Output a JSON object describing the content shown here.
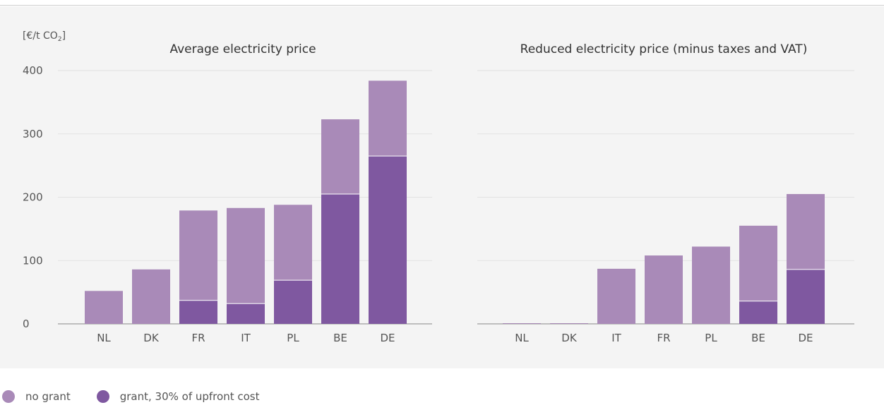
{
  "unit": "[€/t CO",
  "unit_sub": "2",
  "unit_end": "]",
  "legend": [
    {
      "label": "no grant",
      "color": "#a98ab8"
    },
    {
      "label": "grant, 30% of upfront cost",
      "color": "#7f58a0"
    }
  ],
  "chart_data": [
    {
      "type": "bar",
      "title": "Average electricity price",
      "categories": [
        "NL",
        "DK",
        "FR",
        "IT",
        "PL",
        "BE",
        "DE"
      ],
      "series": [
        {
          "name": "no grant",
          "color": "#a98ab8",
          "values": [
            52,
            86,
            179,
            183,
            188,
            323,
            384
          ]
        },
        {
          "name": "grant, 30% of upfront cost",
          "color": "#7f58a0",
          "values": [
            0,
            0,
            37,
            32,
            69,
            205,
            265
          ]
        }
      ],
      "ylim": [
        0,
        400
      ],
      "yticks": [
        0,
        100,
        200,
        300,
        400
      ],
      "grid": true
    },
    {
      "type": "bar",
      "title": "Reduced electricity price (minus taxes and VAT)",
      "categories": [
        "NL",
        "DK",
        "IT",
        "FR",
        "PL",
        "BE",
        "DE"
      ],
      "series": [
        {
          "name": "no grant",
          "color": "#a98ab8",
          "values": [
            0,
            0,
            87,
            108,
            122,
            155,
            205
          ]
        },
        {
          "name": "grant, 30% of upfront cost",
          "color": "#7f58a0",
          "values": [
            0,
            0,
            0,
            0,
            0,
            36,
            86
          ]
        }
      ],
      "ylim": [
        0,
        400
      ],
      "yticks": [
        0,
        100,
        200,
        300,
        400
      ],
      "grid": true
    }
  ]
}
